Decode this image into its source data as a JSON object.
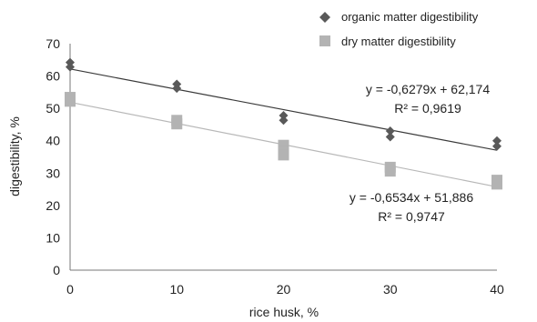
{
  "chart_data": {
    "type": "scatter",
    "title": "",
    "xlabel": "rice husk, %",
    "ylabel": "digestibility, %",
    "xlim": [
      0,
      40
    ],
    "ylim": [
      0,
      70
    ],
    "x_ticks": [
      "0",
      "10",
      "20",
      "30",
      "40"
    ],
    "y_ticks": [
      "0",
      "10",
      "20",
      "30",
      "40",
      "50",
      "60",
      "70"
    ],
    "grid": false,
    "legend_position": "top-right",
    "series": [
      {
        "name": "organic matter digestibility",
        "marker": "diamond",
        "color": "#595959",
        "trend_color": "#3a3a3a",
        "points": [
          {
            "x": 0,
            "y": 64.2
          },
          {
            "x": 0,
            "y": 62.8
          },
          {
            "x": 10,
            "y": 57.5
          },
          {
            "x": 10,
            "y": 56.2
          },
          {
            "x": 20,
            "y": 47.8
          },
          {
            "x": 20,
            "y": 46.3
          },
          {
            "x": 30,
            "y": 43.0
          },
          {
            "x": 30,
            "y": 41.2
          },
          {
            "x": 40,
            "y": 40.0
          },
          {
            "x": 40,
            "y": 38.3
          }
        ],
        "trendline": {
          "slope": -0.6279,
          "intercept": 62.174
        },
        "equation": "y = -0,6279x + 62,174",
        "r2": "R² = 0,9619"
      },
      {
        "name": "dry matter digestibility",
        "marker": "square",
        "color": "#b3b3b3",
        "trend_color": "#b8b8b8",
        "points": [
          {
            "x": 0,
            "y": 53.4
          },
          {
            "x": 0,
            "y": 52.2
          },
          {
            "x": 10,
            "y": 46.3
          },
          {
            "x": 10,
            "y": 45.2
          },
          {
            "x": 20,
            "y": 38.6
          },
          {
            "x": 20,
            "y": 36.8
          },
          {
            "x": 20,
            "y": 35.6
          },
          {
            "x": 30,
            "y": 31.8
          },
          {
            "x": 30,
            "y": 30.6
          },
          {
            "x": 40,
            "y": 27.8
          },
          {
            "x": 40,
            "y": 26.6
          }
        ],
        "trendline": {
          "slope": -0.6534,
          "intercept": 51.886
        },
        "equation": "y = -0,6534x + 51,886",
        "r2": "R² = 0,9747"
      }
    ]
  }
}
